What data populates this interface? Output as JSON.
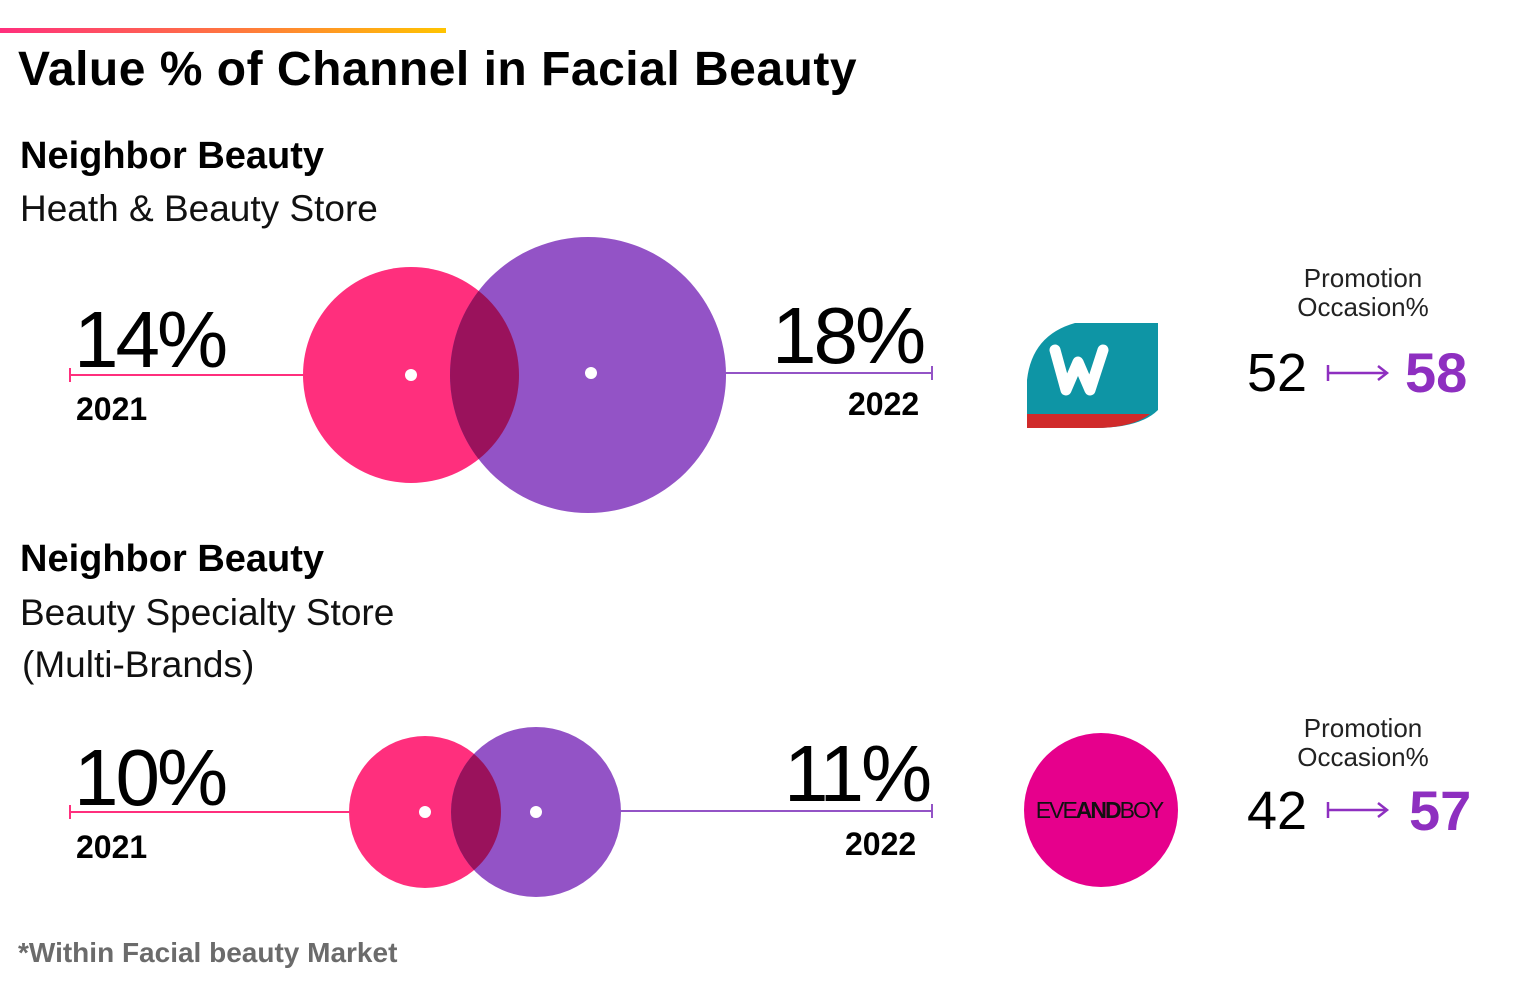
{
  "title": "Value % of Channel in Facial Beauty",
  "footnote": "*Within Facial beauty Market",
  "colors": {
    "pink": "#ff2f7d",
    "purple": "#9353c6",
    "overlap": "#9a125c",
    "accent_purple": "#8e2fc0",
    "watsons_teal": "#0e95a5",
    "watsons_red": "#d02a2a",
    "eveandboy_magenta": "#e6008c"
  },
  "sections": [
    {
      "heading": "Neighbor Beauty",
      "subtitle_lines": [
        "Heath & Beauty Store"
      ],
      "value_2021": "14%",
      "label_2021": "2021",
      "value_2022": "18%",
      "label_2022": "2022",
      "logo": {
        "name": "watsons-logo-icon",
        "text": "W"
      },
      "promotion": {
        "label_line1": "Promotion",
        "label_line2": "Occasion%",
        "from": "52",
        "to": "58"
      }
    },
    {
      "heading": "Neighbor Beauty",
      "subtitle_lines": [
        "Beauty Specialty Store",
        "(Multi-Brands)"
      ],
      "value_2021": "10%",
      "label_2021": "2021",
      "value_2022": "11%",
      "label_2022": "2022",
      "logo": {
        "name": "eveandboy-logo-icon",
        "text": "EVEANDBOY"
      },
      "promotion": {
        "label_line1": "Promotion",
        "label_line2": "Occasion%",
        "from": "42",
        "to": "57"
      }
    }
  ],
  "chart_data": [
    {
      "type": "bubble",
      "title": "Neighbor Beauty — Heath & Beauty Store",
      "series": [
        {
          "name": "2021",
          "value": 14
        },
        {
          "name": "2022",
          "value": 18
        }
      ],
      "promotion_occasion_pct": {
        "from": 52,
        "to": 58
      }
    },
    {
      "type": "bubble",
      "title": "Neighbor Beauty — Beauty Specialty Store (Multi-Brands)",
      "series": [
        {
          "name": "2021",
          "value": 10
        },
        {
          "name": "2022",
          "value": 11
        }
      ],
      "promotion_occasion_pct": {
        "from": 42,
        "to": 57
      }
    }
  ]
}
